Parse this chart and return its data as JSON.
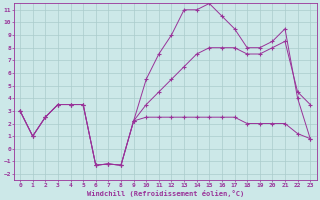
{
  "background_color": "#cce8e8",
  "grid_color": "#aacccc",
  "line_color": "#993399",
  "xlabel": "Windchill (Refroidissement éolien,°C)",
  "xlim": [
    -0.5,
    23.5
  ],
  "ylim": [
    -2.5,
    11.5
  ],
  "xticks": [
    0,
    1,
    2,
    3,
    4,
    5,
    6,
    7,
    8,
    9,
    10,
    11,
    12,
    13,
    14,
    15,
    16,
    17,
    18,
    19,
    20,
    21,
    22,
    23
  ],
  "yticks": [
    -2,
    -1,
    0,
    1,
    2,
    3,
    4,
    5,
    6,
    7,
    8,
    9,
    10,
    11
  ],
  "line_wavy_x": [
    0,
    1,
    2,
    3,
    4,
    5,
    6,
    7,
    8,
    9,
    10,
    11,
    12,
    13,
    14,
    15,
    16,
    17,
    18,
    19,
    20,
    21,
    22,
    23
  ],
  "line_wavy_y": [
    3,
    1,
    2.5,
    3.5,
    3.5,
    3.5,
    -1.3,
    -1.2,
    -1.3,
    2.2,
    2.5,
    2.5,
    2.5,
    2.5,
    2.5,
    2.5,
    2.5,
    2.5,
    2.0,
    2.0,
    2.0,
    2.0,
    1.2,
    0.8
  ],
  "line_top_x": [
    0,
    1,
    2,
    3,
    4,
    5,
    6,
    7,
    8,
    9,
    10,
    11,
    12,
    13,
    14,
    15,
    16,
    17,
    18,
    19,
    20,
    21,
    22,
    23
  ],
  "line_top_y": [
    3,
    1,
    2.5,
    3.5,
    3.5,
    3.5,
    -1.3,
    -1.2,
    -1.3,
    2.2,
    5.5,
    7.5,
    9.0,
    11.0,
    11.0,
    11.5,
    10.5,
    9.5,
    8.0,
    8.0,
    8.5,
    9.5,
    4.0,
    0.8
  ],
  "line_mid_x": [
    0,
    1,
    2,
    3,
    4,
    5,
    6,
    7,
    8,
    9,
    10,
    11,
    12,
    13,
    14,
    15,
    16,
    17,
    18,
    19,
    20,
    21,
    22,
    23
  ],
  "line_mid_y": [
    3,
    1,
    2.5,
    3.5,
    3.5,
    3.5,
    -1.3,
    -1.2,
    -1.3,
    2.2,
    3.5,
    4.5,
    5.5,
    6.5,
    7.5,
    8.0,
    8.0,
    8.0,
    7.5,
    7.5,
    8.0,
    8.5,
    4.5,
    3.5
  ]
}
